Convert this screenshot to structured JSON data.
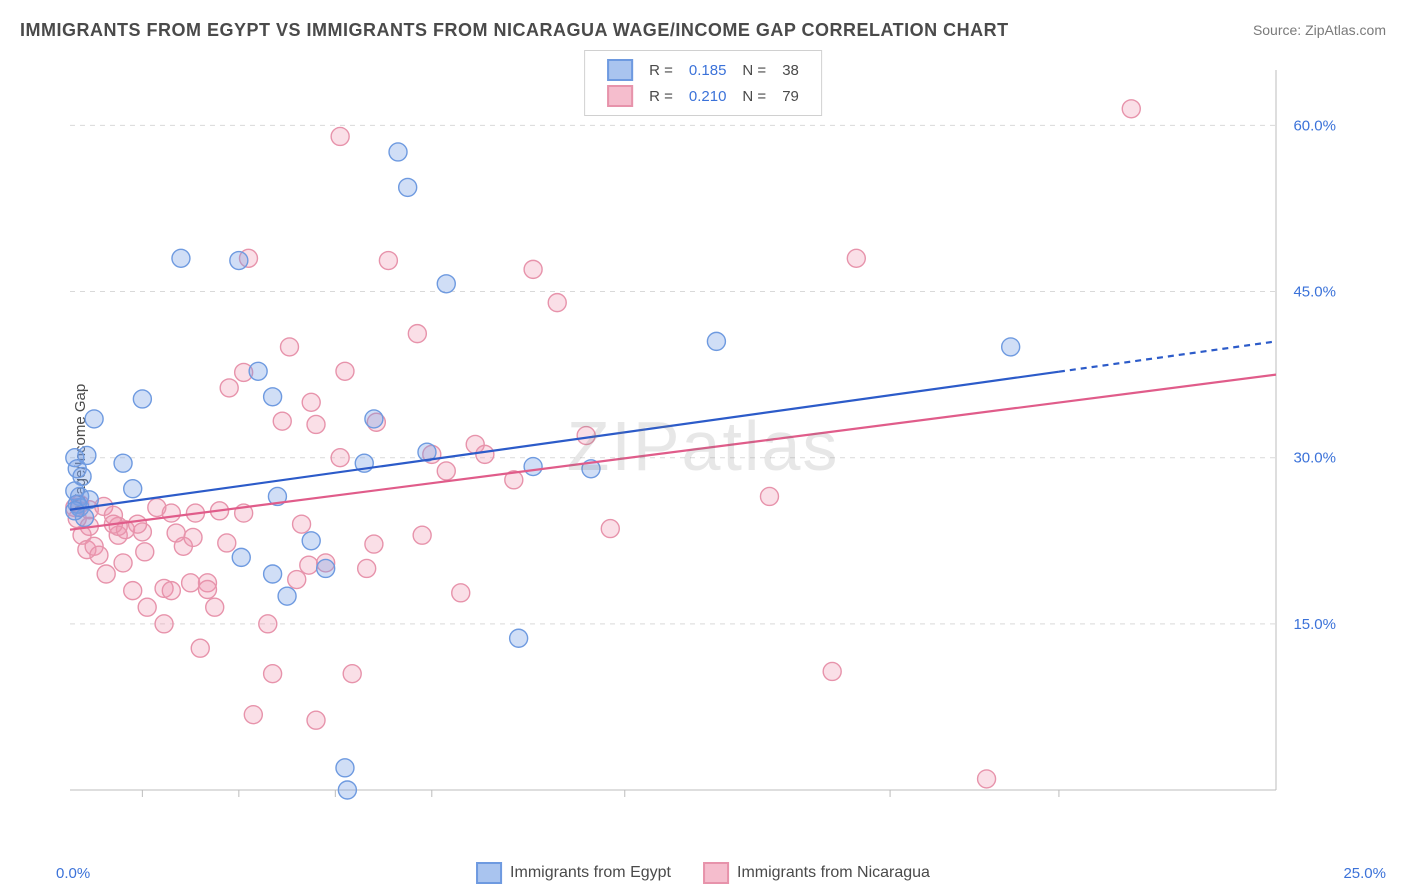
{
  "title": "IMMIGRANTS FROM EGYPT VS IMMIGRANTS FROM NICARAGUA WAGE/INCOME GAP CORRELATION CHART",
  "source": "Source: ZipAtlas.com",
  "ylabel": "Wage/Income Gap",
  "watermark": "ZIPatlas",
  "chart": {
    "type": "scatter",
    "xlim": [
      0,
      25
    ],
    "ylim": [
      0,
      65
    ],
    "x_tick_labels": {
      "left": "0.0%",
      "right": "25.0%"
    },
    "x_minor_ticks": [
      1.5,
      3.5,
      5.5,
      7.5,
      11.5,
      17,
      20.5
    ],
    "y_ticks": [
      15,
      30,
      45,
      60
    ],
    "y_tick_labels": [
      "15.0%",
      "30.0%",
      "45.0%",
      "60.0%"
    ],
    "grid_color": "#d9d9d9",
    "background_color": "#ffffff",
    "marker_radius": 9,
    "marker_stroke_width": 1.4,
    "series": [
      {
        "name": "Immigrants from Egypt",
        "fill": "rgba(120,160,230,0.35)",
        "stroke": "#6e9ae0",
        "legend_fill": "#a9c4ef",
        "legend_stroke": "#6e9ae0",
        "R": "0.185",
        "N": "38",
        "trend": {
          "color": "#2c5bc9",
          "x1": 0.0,
          "y1": 25.3,
          "x2": 25.0,
          "y2": 40.5,
          "dashed_from_x": 20.5,
          "width": 2.2
        },
        "points": [
          [
            0.1,
            30.0
          ],
          [
            0.15,
            29.0
          ],
          [
            0.2,
            26.5
          ],
          [
            0.2,
            25.5
          ],
          [
            0.25,
            28.3
          ],
          [
            0.3,
            24.6
          ],
          [
            0.35,
            30.2
          ],
          [
            0.4,
            26.2
          ],
          [
            0.5,
            33.5
          ],
          [
            1.1,
            29.5
          ],
          [
            1.3,
            27.2
          ],
          [
            1.5,
            35.3
          ],
          [
            2.3,
            48.0
          ],
          [
            3.5,
            47.8
          ],
          [
            3.9,
            37.8
          ],
          [
            3.55,
            21.0
          ],
          [
            4.2,
            35.5
          ],
          [
            4.2,
            19.5
          ],
          [
            4.3,
            26.5
          ],
          [
            4.5,
            17.5
          ],
          [
            5.3,
            20.0
          ],
          [
            5.7,
            2.0
          ],
          [
            5.75,
            0.0
          ],
          [
            5.0,
            22.5
          ],
          [
            6.1,
            29.5
          ],
          [
            6.3,
            33.5
          ],
          [
            6.8,
            57.6
          ],
          [
            7.0,
            54.4
          ],
          [
            7.4,
            30.5
          ],
          [
            7.8,
            45.7
          ],
          [
            9.3,
            13.7
          ],
          [
            9.6,
            29.2
          ],
          [
            10.8,
            29.0
          ],
          [
            13.4,
            40.5
          ],
          [
            19.5,
            40.0
          ],
          [
            0.1,
            27.0
          ],
          [
            0.15,
            25.8
          ],
          [
            0.1,
            25.2
          ]
        ]
      },
      {
        "name": "Immigrants from Nicaragua",
        "fill": "rgba(240,150,175,0.30)",
        "stroke": "#e793ab",
        "legend_fill": "#f5bdcd",
        "legend_stroke": "#e793ab",
        "R": "0.210",
        "N": "79",
        "trend": {
          "color": "#e05c8a",
          "x1": 0.0,
          "y1": 23.5,
          "x2": 25.0,
          "y2": 37.5,
          "width": 2.2
        },
        "points": [
          [
            0.1,
            25.5
          ],
          [
            0.15,
            24.5
          ],
          [
            0.2,
            25.8
          ],
          [
            0.25,
            23.0
          ],
          [
            0.35,
            21.7
          ],
          [
            0.4,
            25.3
          ],
          [
            0.5,
            22.0
          ],
          [
            0.6,
            21.2
          ],
          [
            0.7,
            25.6
          ],
          [
            0.75,
            19.5
          ],
          [
            0.9,
            24.8
          ],
          [
            1.0,
            23.0
          ],
          [
            1.1,
            20.5
          ],
          [
            1.15,
            23.5
          ],
          [
            1.3,
            18.0
          ],
          [
            1.5,
            23.3
          ],
          [
            1.55,
            21.5
          ],
          [
            1.6,
            16.5
          ],
          [
            1.8,
            25.5
          ],
          [
            1.95,
            18.2
          ],
          [
            1.95,
            15.0
          ],
          [
            2.1,
            25.0
          ],
          [
            2.1,
            18.0
          ],
          [
            2.2,
            23.2
          ],
          [
            2.35,
            22.0
          ],
          [
            2.5,
            18.7
          ],
          [
            2.55,
            22.8
          ],
          [
            2.7,
            12.8
          ],
          [
            2.6,
            25.0
          ],
          [
            2.85,
            18.7
          ],
          [
            2.85,
            18.1
          ],
          [
            3.0,
            16.5
          ],
          [
            3.1,
            25.2
          ],
          [
            3.25,
            22.3
          ],
          [
            3.3,
            36.3
          ],
          [
            3.6,
            25.0
          ],
          [
            3.6,
            37.7
          ],
          [
            3.7,
            48.0
          ],
          [
            4.1,
            15.0
          ],
          [
            4.2,
            10.5
          ],
          [
            4.55,
            40.0
          ],
          [
            4.7,
            19.0
          ],
          [
            4.8,
            24.0
          ],
          [
            4.95,
            20.3
          ],
          [
            5.0,
            35.0
          ],
          [
            5.1,
            33.0
          ],
          [
            5.3,
            20.5
          ],
          [
            5.6,
            30.0
          ],
          [
            5.6,
            59.0
          ],
          [
            5.7,
            37.8
          ],
          [
            5.85,
            10.5
          ],
          [
            6.15,
            20.0
          ],
          [
            6.3,
            22.2
          ],
          [
            6.35,
            33.2
          ],
          [
            6.6,
            47.8
          ],
          [
            7.2,
            41.2
          ],
          [
            7.3,
            23.0
          ],
          [
            7.5,
            30.3
          ],
          [
            7.8,
            28.8
          ],
          [
            8.1,
            17.8
          ],
          [
            8.4,
            31.2
          ],
          [
            8.6,
            30.3
          ],
          [
            9.2,
            28.0
          ],
          [
            9.6,
            47.0
          ],
          [
            10.1,
            44.0
          ],
          [
            10.7,
            32.0
          ],
          [
            11.2,
            23.6
          ],
          [
            14.5,
            26.5
          ],
          [
            15.8,
            10.7
          ],
          [
            16.3,
            48.0
          ],
          [
            19.0,
            1.0
          ],
          [
            22.0,
            61.5
          ],
          [
            1.0,
            23.8
          ],
          [
            0.4,
            23.8
          ],
          [
            0.9,
            24.0
          ],
          [
            1.4,
            24.0
          ],
          [
            3.8,
            6.8
          ],
          [
            5.1,
            6.3
          ],
          [
            4.4,
            33.3
          ]
        ]
      }
    ]
  },
  "legend_top": {
    "r_label": "R =",
    "n_label": "N ="
  },
  "legend_bottom": [
    {
      "label": "Immigrants from Egypt",
      "fill": "#a9c4ef",
      "stroke": "#6e9ae0"
    },
    {
      "label": "Immigrants from Nicaragua",
      "fill": "#f5bdcd",
      "stroke": "#e793ab"
    }
  ]
}
